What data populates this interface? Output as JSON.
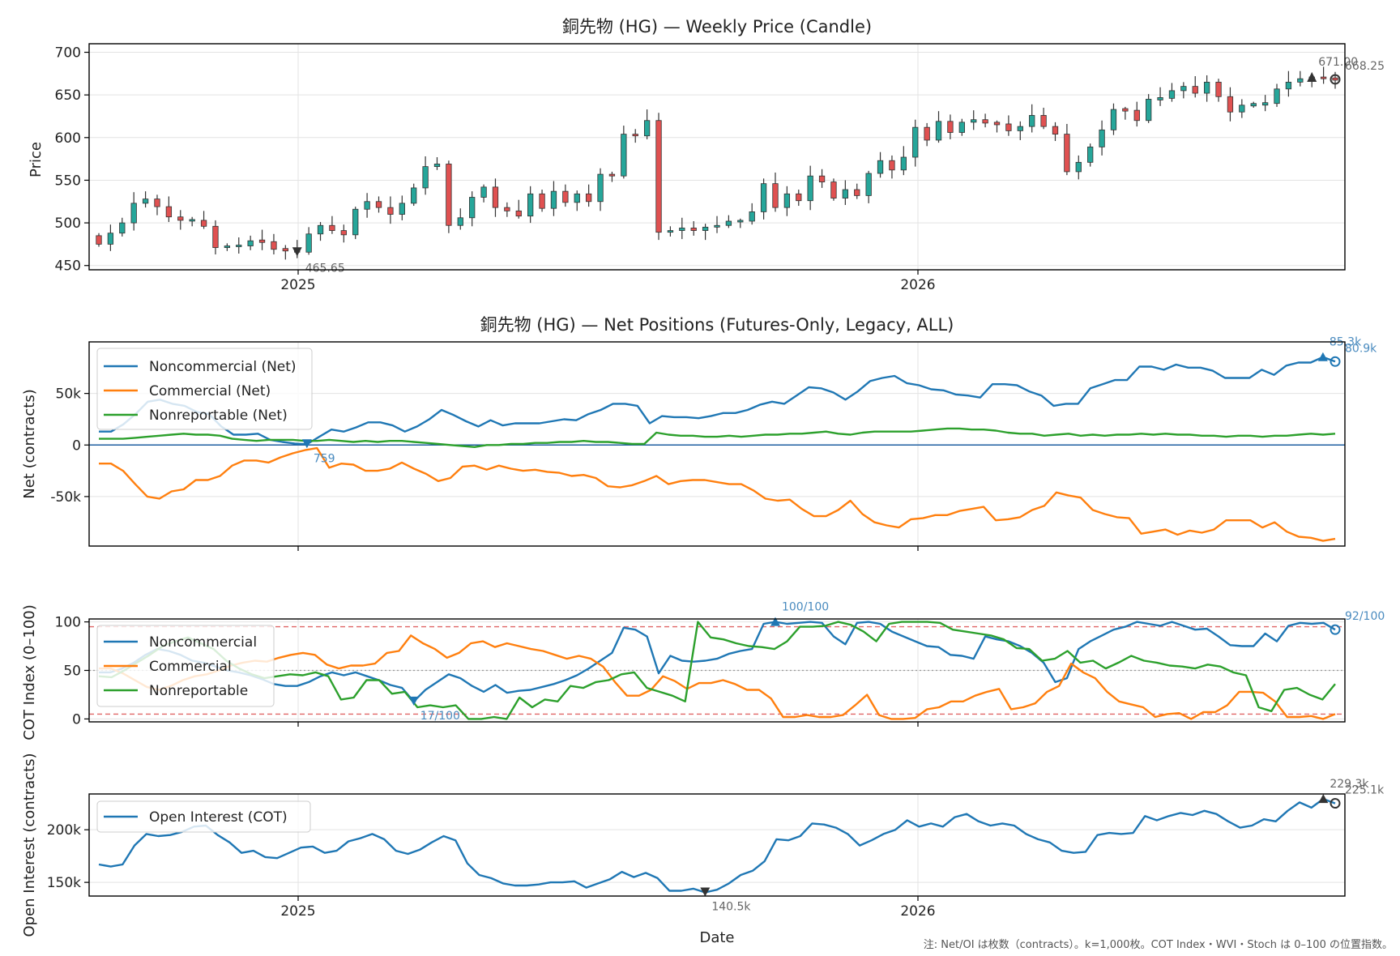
{
  "figure": {
    "note": "注: Net/OI は枚数（contracts）。k=1,000枚。COT Index・WVI・Stoch は 0–100 の位置指数。"
  },
  "colors": {
    "noncommercial": "#1f77b4",
    "commercial": "#ff7f0e",
    "nonreportable": "#2ca02c",
    "candle_up": "#26a69a",
    "candle_down": "#e05151",
    "threshold": "#e06666"
  },
  "chart_data": [
    {
      "type": "candlestick",
      "title": "銅先物 (HG) — Weekly Price (Candle)",
      "ylabel": "Price",
      "xlabel": "",
      "x_tick_labels": [
        "2025",
        "2026"
      ],
      "yticks": [
        "450",
        "500",
        "550",
        "600",
        "650",
        "700"
      ],
      "ylim": [
        445,
        710
      ],
      "grid": true,
      "annotations": {
        "min_label": "465.65",
        "max_label": "671.00",
        "last_label": "668.25"
      },
      "closes": [
        475,
        488,
        500,
        523,
        528,
        519,
        507,
        503,
        503,
        496,
        471,
        473,
        473,
        479,
        478,
        469,
        468,
        465.65,
        487,
        497,
        491,
        486,
        516,
        525,
        518,
        510,
        523,
        541,
        566,
        569,
        497,
        506,
        530,
        542,
        518,
        514,
        508,
        534,
        517,
        537,
        524,
        534,
        525,
        557,
        555,
        604,
        602,
        620,
        489,
        491,
        494,
        491,
        495,
        497,
        502,
        502,
        513,
        546,
        518,
        534,
        526,
        555,
        548,
        529,
        539,
        532,
        558,
        573,
        562,
        577,
        612,
        597,
        619,
        606,
        618,
        621,
        617,
        616,
        608,
        613,
        626,
        613,
        604,
        560,
        571,
        589,
        609,
        633,
        632,
        620,
        645,
        646,
        655,
        660,
        652,
        665,
        648,
        630,
        638,
        639,
        640,
        657,
        665,
        669,
        671,
        669,
        668.25
      ],
      "series_tail": "weekly candles"
    },
    {
      "type": "line",
      "title": "銅先物 (HG) — Net Positions (Futures-Only, Legacy, ALL)",
      "ylabel": "Net (contracts)",
      "yticks": [
        "-50k",
        "0",
        "50k"
      ],
      "ylim": [
        -98000,
        100000
      ],
      "grid": true,
      "legend": "top-left",
      "annotations": {
        "min_label": "759",
        "max_label": "85.3k",
        "last_label": "80.9k"
      },
      "series": [
        {
          "name": "Noncommercial (Net)",
          "key": "noncommercial",
          "values": [
            13000,
            13000,
            20000,
            30000,
            42000,
            44000,
            40000,
            38000,
            32000,
            30000,
            18000,
            10000,
            10000,
            11000,
            5000,
            3000,
            1500,
            759,
            8000,
            15000,
            13000,
            17000,
            22000,
            22000,
            19000,
            13000,
            18000,
            25000,
            34000,
            29000,
            23000,
            18000,
            24000,
            19000,
            21000,
            21000,
            21000,
            23000,
            25000,
            24000,
            30000,
            34000,
            40000,
            40000,
            38000,
            21000,
            28000,
            27000,
            27000,
            26000,
            28000,
            31000,
            31000,
            34000,
            39000,
            42000,
            40000,
            48000,
            56000,
            55000,
            51000,
            44000,
            52000,
            62000,
            65000,
            67000,
            60000,
            58000,
            54000,
            53000,
            49000,
            48000,
            46000,
            59000,
            59000,
            58000,
            52000,
            48000,
            38000,
            40000,
            40000,
            55000,
            59000,
            63000,
            63000,
            76000,
            76000,
            73000,
            78000,
            75000,
            75000,
            72000,
            65000,
            65000,
            65000,
            73000,
            68000,
            77000,
            80000,
            80000,
            85300,
            80900
          ]
        },
        {
          "name": "Commercial (Net)",
          "key": "commercial",
          "values": [
            -18000,
            -18000,
            -25000,
            -38000,
            -50000,
            -52000,
            -45000,
            -43000,
            -34000,
            -34000,
            -30000,
            -20000,
            -15000,
            -15000,
            -17000,
            -12000,
            -8000,
            -5000,
            -3000,
            -22000,
            -18000,
            -19000,
            -25000,
            -25000,
            -23000,
            -17000,
            -23000,
            -28000,
            -35000,
            -32000,
            -21000,
            -20000,
            -24000,
            -20000,
            -23000,
            -25000,
            -24000,
            -26000,
            -27000,
            -30000,
            -29000,
            -32000,
            -40000,
            -41000,
            -39000,
            -35000,
            -30000,
            -38000,
            -35000,
            -34000,
            -34000,
            -36000,
            -38000,
            -38000,
            -44000,
            -52000,
            -54000,
            -53000,
            -62000,
            -69000,
            -69000,
            -63000,
            -54000,
            -67000,
            -75000,
            -78000,
            -80000,
            -72000,
            -71000,
            -68000,
            -68000,
            -64000,
            -62000,
            -60000,
            -73000,
            -72000,
            -70000,
            -63000,
            -59000,
            -46000,
            -49000,
            -51000,
            -63000,
            -67000,
            -70000,
            -71000,
            -86000,
            -84000,
            -82000,
            -87000,
            -83000,
            -85000,
            -82000,
            -73000,
            -73000,
            -73000,
            -80000,
            -75000,
            -84000,
            -89000,
            -90000,
            -93000,
            -91000
          ]
        },
        {
          "name": "Nonreportable (Net)",
          "key": "nonreportable",
          "values": [
            6000,
            6000,
            6000,
            7000,
            8000,
            9000,
            10000,
            11000,
            10000,
            10000,
            9000,
            6000,
            5000,
            4000,
            5000,
            5000,
            5000,
            4000,
            4000,
            5000,
            4000,
            3000,
            4000,
            3000,
            4000,
            4000,
            3000,
            2000,
            1000,
            0,
            -1000,
            -2000,
            0,
            0,
            1000,
            1000,
            2000,
            2000,
            3000,
            3000,
            4000,
            3000,
            3000,
            2000,
            1000,
            1000,
            12000,
            10000,
            9000,
            9000,
            8000,
            8000,
            9000,
            8000,
            9000,
            10000,
            10000,
            11000,
            11000,
            12000,
            13000,
            11000,
            10000,
            12000,
            13000,
            13000,
            13000,
            13000,
            14000,
            15000,
            16000,
            16000,
            15000,
            15000,
            14000,
            12000,
            11000,
            11000,
            9000,
            10000,
            11000,
            9000,
            10000,
            9000,
            10000,
            10000,
            11000,
            10000,
            11000,
            10000,
            10000,
            9000,
            9000,
            8000,
            9000,
            9000,
            8000,
            9000,
            9000,
            10000,
            11000,
            10000,
            11000
          ]
        }
      ]
    },
    {
      "type": "line",
      "title": "",
      "ylabel": "COT Index (0–100)",
      "yticks": [
        "0",
        "50",
        "100"
      ],
      "ylim": [
        -3,
        103
      ],
      "thresholds": [
        5,
        95
      ],
      "midline": 50,
      "legend": "top-left",
      "annotations": {
        "min_label": "17/100",
        "max_label": "100/100",
        "last_label": "92/100"
      },
      "series": [
        {
          "name": "Noncommercial",
          "key": "noncommercial",
          "values": [
            48,
            48,
            52,
            58,
            66,
            72,
            70,
            66,
            60,
            58,
            54,
            50,
            48,
            45,
            41,
            36,
            34,
            34,
            38,
            44,
            48,
            45,
            48,
            44,
            40,
            35,
            32,
            18,
            30,
            38,
            46,
            42,
            34,
            28,
            35,
            27,
            29,
            30,
            33,
            36,
            40,
            45,
            52,
            60,
            68,
            94,
            92,
            85,
            47,
            65,
            60,
            59,
            60,
            62,
            67,
            70,
            72,
            98,
            100,
            98,
            99,
            100,
            99,
            85,
            77,
            99,
            100,
            98,
            90,
            85,
            80,
            75,
            74,
            66,
            65,
            62,
            85,
            82,
            80,
            75,
            68,
            58,
            38,
            42,
            72,
            80,
            86,
            92,
            95,
            100,
            98,
            96,
            100,
            96,
            92,
            93,
            85,
            76,
            75,
            75,
            88,
            80,
            96,
            99,
            98,
            99,
            92
          ]
        },
        {
          "name": "Commercial",
          "key": "commercial",
          "values": [
            52,
            52,
            47,
            40,
            33,
            30,
            34,
            40,
            44,
            46,
            50,
            55,
            58,
            60,
            59,
            63,
            66,
            68,
            66,
            56,
            52,
            55,
            55,
            57,
            68,
            70,
            86,
            78,
            72,
            63,
            68,
            78,
            80,
            74,
            78,
            75,
            72,
            70,
            66,
            62,
            65,
            62,
            54,
            38,
            24,
            24,
            30,
            44,
            39,
            31,
            37,
            37,
            40,
            36,
            30,
            30,
            21,
            2,
            2,
            4,
            2,
            2,
            4,
            14,
            25,
            4,
            0,
            0,
            1,
            10,
            12,
            18,
            18,
            24,
            28,
            31,
            10,
            12,
            16,
            28,
            34,
            57,
            48,
            42,
            28,
            18,
            15,
            12,
            2,
            5,
            6,
            0,
            7,
            7,
            14,
            28,
            28,
            27,
            18,
            2,
            2,
            3,
            0,
            5
          ]
        },
        {
          "name": "Nonreportable",
          "key": "nonreportable",
          "values": [
            44,
            43,
            50,
            58,
            66,
            75,
            80,
            84,
            78,
            72,
            60,
            52,
            46,
            42,
            44,
            46,
            45,
            48,
            44,
            20,
            22,
            40,
            40,
            26,
            28,
            12,
            14,
            12,
            14,
            0,
            0,
            2,
            0,
            22,
            12,
            20,
            18,
            34,
            32,
            38,
            40,
            46,
            48,
            32,
            28,
            24,
            18,
            100,
            84,
            82,
            78,
            75,
            74,
            72,
            80,
            95,
            95,
            96,
            100,
            97,
            90,
            80,
            98,
            100,
            100,
            100,
            99,
            92,
            90,
            88,
            86,
            82,
            73,
            72,
            60,
            62,
            70,
            58,
            60,
            52,
            58,
            65,
            60,
            58,
            55,
            54,
            52,
            56,
            54,
            48,
            45,
            12,
            8,
            30,
            32,
            25,
            20,
            36
          ]
        }
      ]
    },
    {
      "type": "line",
      "title": "",
      "ylabel": "Open Interest (contracts)",
      "xlabel": "Date",
      "x_tick_labels": [
        "2025",
        "2026"
      ],
      "yticks": [
        "150k",
        "200k"
      ],
      "ylim": [
        137000,
        234000
      ],
      "legend": "top-left",
      "annotations": {
        "min_label": "140.5k",
        "max_label": "229.3k",
        "last_label": "225.1k"
      },
      "series": [
        {
          "name": "Open Interest (COT)",
          "key": "noncommercial",
          "values": [
            167000,
            165000,
            167000,
            185000,
            196000,
            194000,
            195000,
            198000,
            203000,
            204000,
            195000,
            188000,
            178000,
            180000,
            174000,
            173000,
            178000,
            183000,
            184000,
            178000,
            180000,
            189000,
            192000,
            196000,
            191000,
            180000,
            177000,
            181000,
            188000,
            194000,
            190000,
            168000,
            157000,
            154000,
            149000,
            147000,
            147000,
            148000,
            150000,
            150000,
            151000,
            145000,
            149000,
            153000,
            160000,
            155000,
            159000,
            154000,
            142000,
            142000,
            144000,
            140500,
            143000,
            149000,
            157000,
            161000,
            170000,
            191000,
            190000,
            194000,
            206000,
            205000,
            202000,
            196000,
            185000,
            190000,
            196000,
            200000,
            209000,
            203000,
            206000,
            203000,
            212000,
            215000,
            208000,
            204000,
            206000,
            204000,
            196000,
            191000,
            188000,
            180000,
            178000,
            179000,
            195000,
            197000,
            196000,
            197000,
            213000,
            209000,
            213000,
            216000,
            214000,
            218000,
            215000,
            208000,
            202000,
            204000,
            210000,
            208000,
            218000,
            226000,
            221000,
            229300,
            225100
          ]
        }
      ]
    }
  ]
}
